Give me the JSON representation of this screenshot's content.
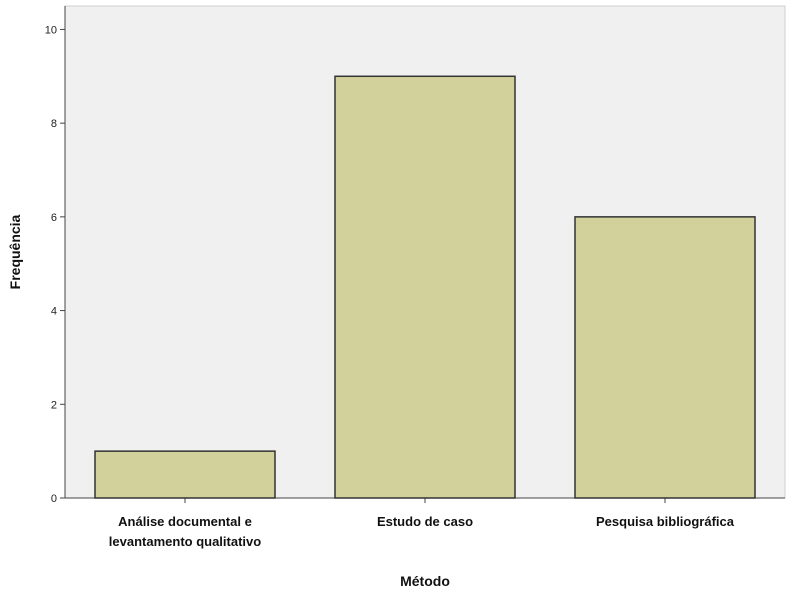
{
  "chart_data": {
    "type": "bar",
    "categories": [
      [
        "Análise documental e",
        "levantamento qualitativo"
      ],
      [
        "Estudo de caso"
      ],
      [
        "Pesquisa bibliográfica"
      ]
    ],
    "values": [
      1,
      9,
      6
    ],
    "xlabel": "Método",
    "ylabel": "Frequência",
    "ylim": [
      0,
      10.5
    ],
    "yticks": [
      0,
      2,
      4,
      6,
      8,
      10
    ],
    "grid": false,
    "colors": {
      "plot_background": "#f0f0f0",
      "bar_fill": "#d2d09b",
      "bar_stroke": "#333333",
      "axis": "#444444"
    }
  }
}
